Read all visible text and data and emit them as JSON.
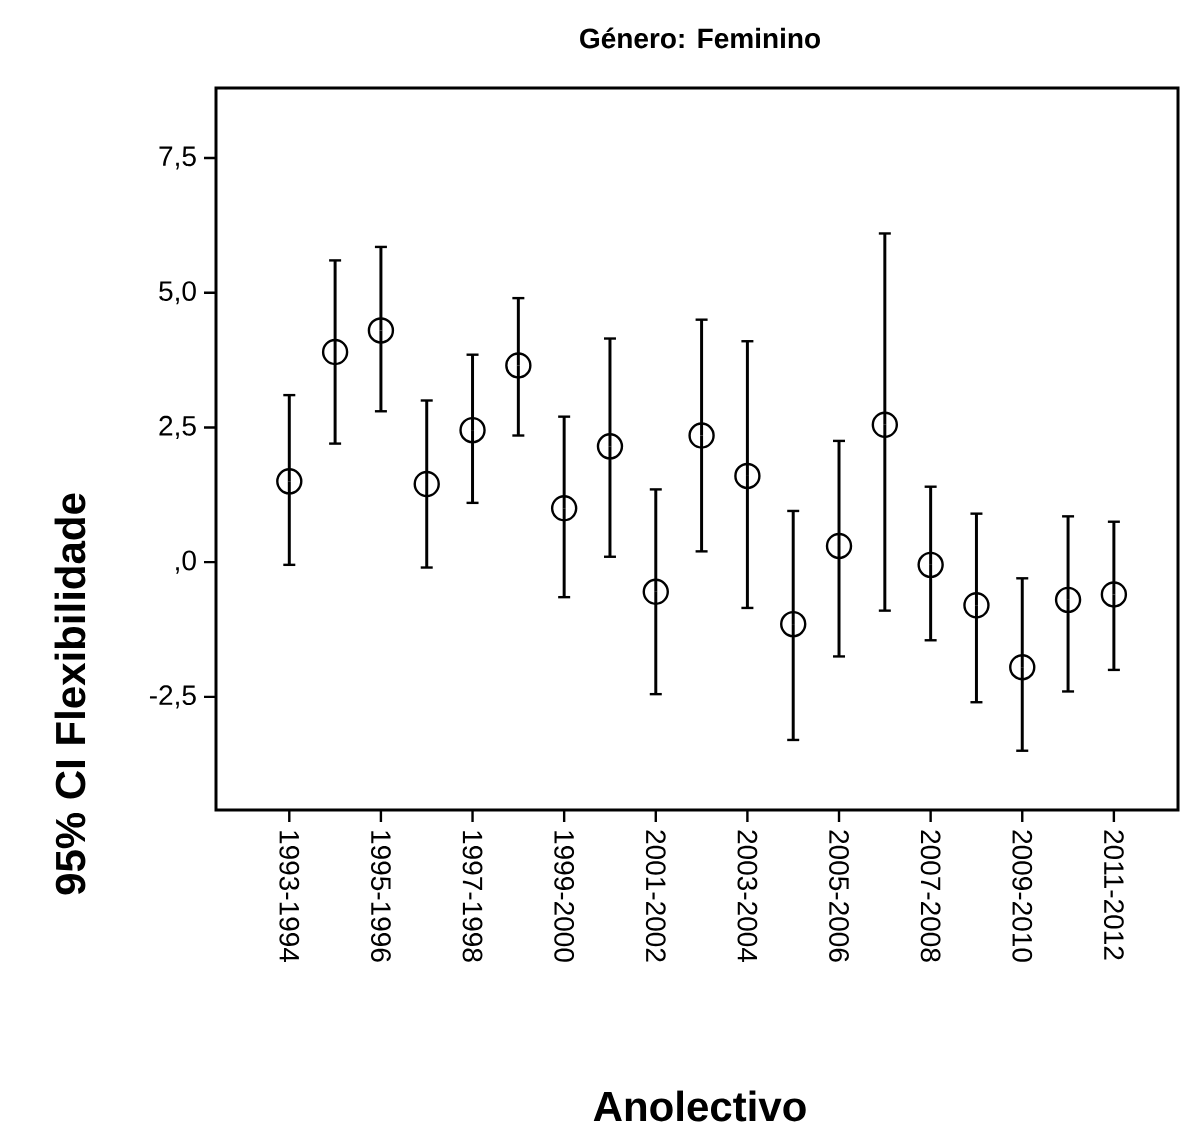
{
  "chart_data": {
    "type": "scatter",
    "title": "Género: Feminino",
    "xlabel": "Anolectivo",
    "ylabel": "95% CI Flexibilidade",
    "categories": [
      "1993-1994",
      null,
      "1995-1996",
      null,
      "1997-1998",
      null,
      "1999-2000",
      null,
      "2001-2002",
      null,
      "2003-2004",
      null,
      "2005-2006",
      null,
      "2007-2008",
      null,
      "2009-2010",
      null,
      "2011-2012"
    ],
    "values": [
      1.5,
      3.9,
      4.3,
      1.45,
      2.45,
      3.65,
      1.0,
      2.15,
      -0.55,
      2.35,
      1.6,
      -1.15,
      0.3,
      2.55,
      -0.05,
      -0.8,
      -1.95,
      -0.7,
      -0.6
    ],
    "errors": [
      [
        -0.05,
        3.1
      ],
      [
        2.2,
        5.6
      ],
      [
        2.8,
        5.85
      ],
      [
        -0.1,
        3.0
      ],
      [
        1.1,
        3.85
      ],
      [
        2.35,
        4.9
      ],
      [
        -0.65,
        2.7
      ],
      [
        0.1,
        4.15
      ],
      [
        -2.45,
        1.35
      ],
      [
        0.2,
        4.5
      ],
      [
        -0.85,
        4.1
      ],
      [
        -3.3,
        0.95
      ],
      [
        -1.75,
        2.25
      ],
      [
        -0.9,
        6.1
      ],
      [
        -1.45,
        1.4
      ],
      [
        -2.6,
        0.9
      ],
      [
        -3.5,
        -0.3
      ],
      [
        -2.4,
        0.85
      ],
      [
        -2.0,
        0.75
      ]
    ],
    "color": "#000000",
    "marker": "circle",
    "ylim": [
      -4.6,
      8.8
    ],
    "yticks": [
      {
        "value": -2.5,
        "label": "-2,5"
      },
      {
        "value": 0,
        "label": ",0"
      },
      {
        "value": 2.5,
        "label": "2,5"
      },
      {
        "value": 5,
        "label": "5,0"
      },
      {
        "value": 7.5,
        "label": "7,5"
      }
    ]
  }
}
